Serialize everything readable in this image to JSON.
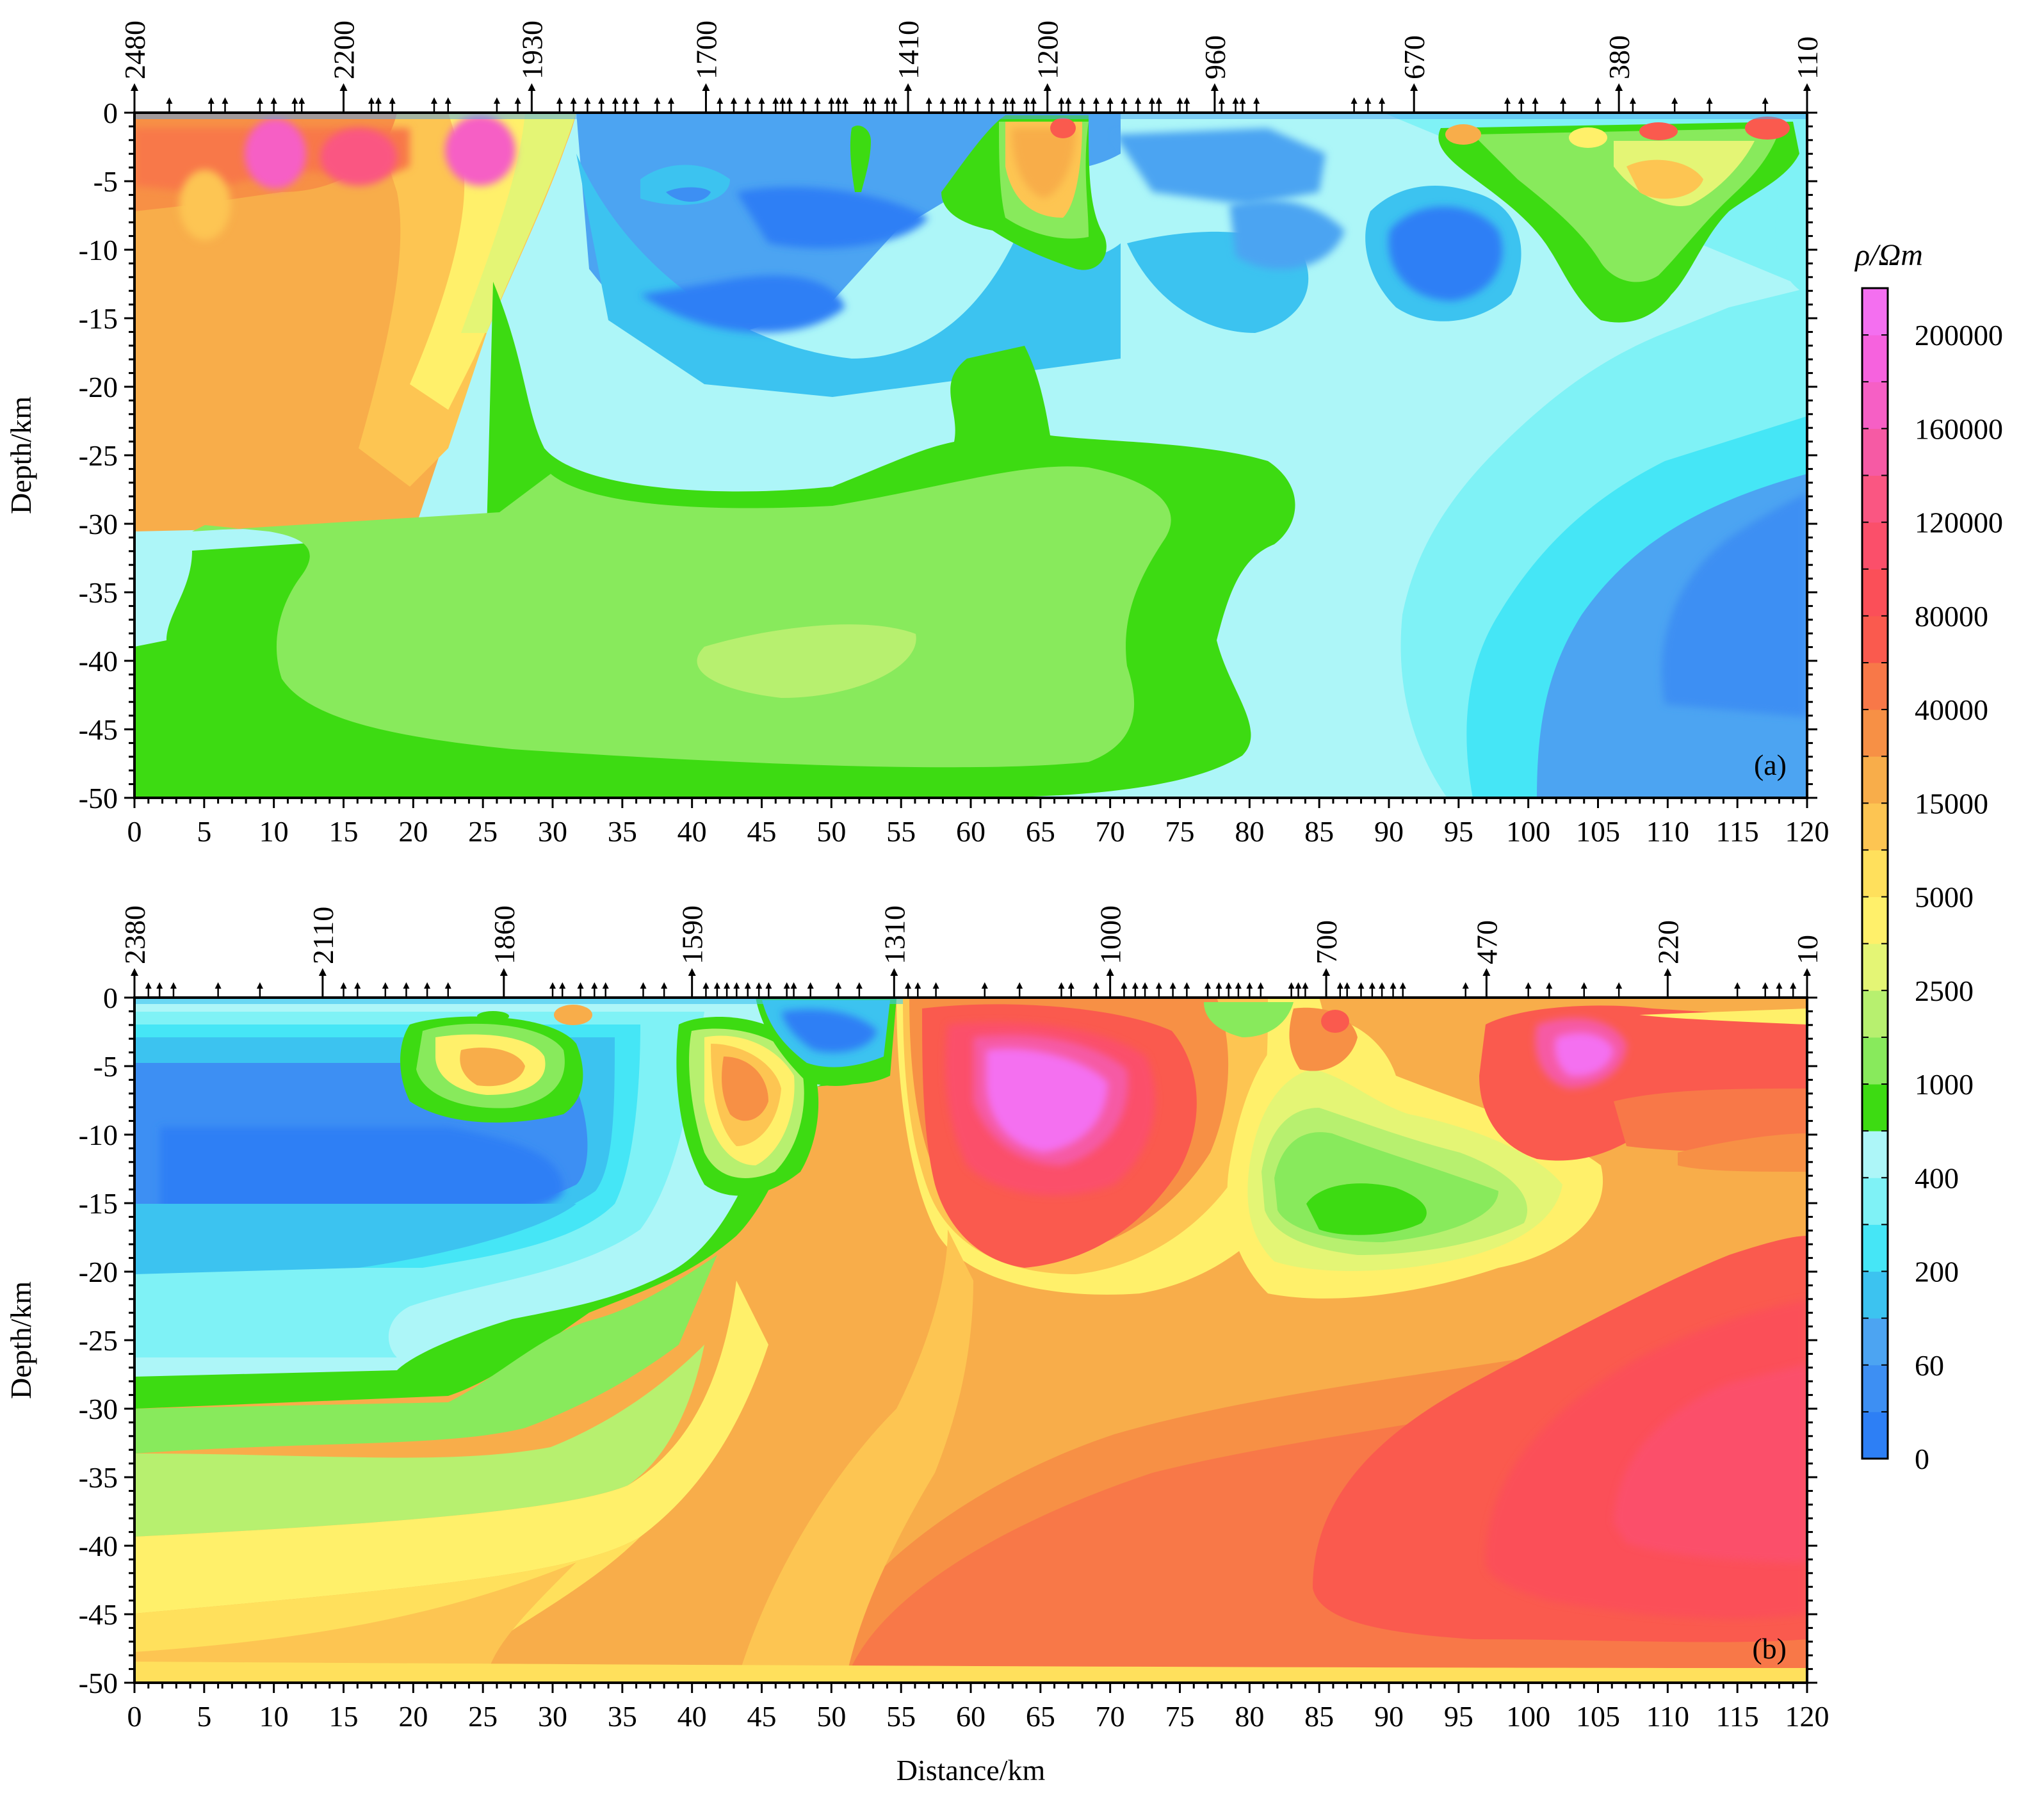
{
  "figure": {
    "xlabel": "Distance/km",
    "colorbar_title": "ρ/Ωm"
  },
  "chart_data": [
    {
      "type": "heatmap",
      "panel_label": "(a)",
      "xlabel": "",
      "ylabel": "Depth/km",
      "xlim": [
        0,
        120
      ],
      "ylim": [
        -50,
        0
      ],
      "xticks": [
        0,
        5,
        10,
        15,
        20,
        25,
        30,
        35,
        40,
        45,
        50,
        55,
        60,
        65,
        70,
        75,
        80,
        85,
        90,
        95,
        100,
        105,
        110,
        115,
        120
      ],
      "yticks": [
        0,
        -5,
        -10,
        -15,
        -20,
        -25,
        -30,
        -35,
        -40,
        -45,
        -50
      ],
      "stations_labeled": [
        {
          "label": "2480",
          "x": 0
        },
        {
          "label": "2200",
          "x": 15
        },
        {
          "label": "1930",
          "x": 28.5
        },
        {
          "label": "1700",
          "x": 41
        },
        {
          "label": "1410",
          "x": 55.5
        },
        {
          "label": "1200",
          "x": 65.5
        },
        {
          "label": "960",
          "x": 77.5
        },
        {
          "label": "670",
          "x": 91.8
        },
        {
          "label": "380",
          "x": 106.5
        },
        {
          "label": "110",
          "x": 120
        }
      ],
      "stations_minor": [
        2.5,
        5.5,
        6.5,
        9,
        10,
        11.5,
        12,
        17,
        17.5,
        18.5,
        21.5,
        22.5,
        26,
        27.5,
        30.5,
        31.5,
        32.5,
        33.5,
        34.5,
        35.2,
        36,
        37.5,
        38.5,
        42,
        43,
        44,
        45,
        46,
        46.5,
        47,
        48,
        49,
        50,
        50.5,
        51,
        52.5,
        53,
        54,
        54.5,
        57,
        58,
        59,
        59.5,
        60.5,
        61.5,
        62.5,
        63,
        64,
        64.5,
        66.5,
        67,
        68,
        69,
        70,
        71,
        72,
        73,
        73.5,
        75,
        75.5,
        78,
        79,
        79.5,
        80.5,
        87.5,
        88.5,
        89.5,
        98.5,
        99.5,
        100.5,
        102.5,
        105,
        107.5,
        110.5,
        113,
        117
      ]
    },
    {
      "type": "heatmap",
      "panel_label": "(b)",
      "xlabel": "Distance/km",
      "ylabel": "Depth/km",
      "xlim": [
        0,
        120
      ],
      "ylim": [
        -50,
        0
      ],
      "xticks": [
        0,
        5,
        10,
        15,
        20,
        25,
        30,
        35,
        40,
        45,
        50,
        55,
        60,
        65,
        70,
        75,
        80,
        85,
        90,
        95,
        100,
        105,
        110,
        115,
        120
      ],
      "yticks": [
        0,
        -5,
        -10,
        -15,
        -20,
        -25,
        -30,
        -35,
        -40,
        -45,
        -50
      ],
      "stations_labeled": [
        {
          "label": "2380",
          "x": 0
        },
        {
          "label": "2110",
          "x": 13.5
        },
        {
          "label": "1860",
          "x": 26.5
        },
        {
          "label": "1590",
          "x": 40
        },
        {
          "label": "1310",
          "x": 54.5
        },
        {
          "label": "1000",
          "x": 70
        },
        {
          "label": "700",
          "x": 85.5
        },
        {
          "label": "470",
          "x": 97
        },
        {
          "label": "220",
          "x": 110
        },
        {
          "label": "10",
          "x": 120
        }
      ],
      "stations_minor": [
        1,
        1.8,
        2.8,
        6,
        9,
        15,
        16,
        18,
        19.5,
        21,
        22.5,
        30,
        30.7,
        32,
        33,
        33.8,
        36.5,
        38,
        41,
        41.8,
        42.5,
        43.2,
        44,
        44.8,
        45.5,
        46.8,
        47.3,
        48.5,
        50.5,
        52,
        55.5,
        56.2,
        57.5,
        61,
        63.5,
        66.5,
        67.2,
        69,
        71,
        71.8,
        72.5,
        73.5,
        74.5,
        75.5,
        77,
        77.8,
        78.5,
        79.2,
        80,
        80.8,
        83,
        83.5,
        84,
        86.5,
        87,
        88,
        88.8,
        89.5,
        90.3,
        91,
        95.5,
        100,
        101.5,
        104,
        106.5,
        115,
        117,
        118,
        119
      ]
    }
  ],
  "colorbar": {
    "tick_labels": [
      "0",
      "60",
      "200",
      "400",
      "1000",
      "2500",
      "5000",
      "15000",
      "40000",
      "80000",
      "120000",
      "160000",
      "200000"
    ],
    "colors": [
      "#2d7ff5",
      "#3d8ff3",
      "#4ca4f2",
      "#3cc3f0",
      "#45e6f6",
      "#7ff2f6",
      "#adf6f8",
      "#3ddb12",
      "#88ea5c",
      "#b7f06f",
      "#e4f575",
      "#fff06a",
      "#ffe05c",
      "#fdc552",
      "#f8ad4a",
      "#f79045",
      "#f87848",
      "#fa5a4e",
      "#fb4f58",
      "#fb4f6a",
      "#fa5682",
      "#f65aa4",
      "#f65fc5",
      "#f662de",
      "#f46ff0"
    ]
  }
}
